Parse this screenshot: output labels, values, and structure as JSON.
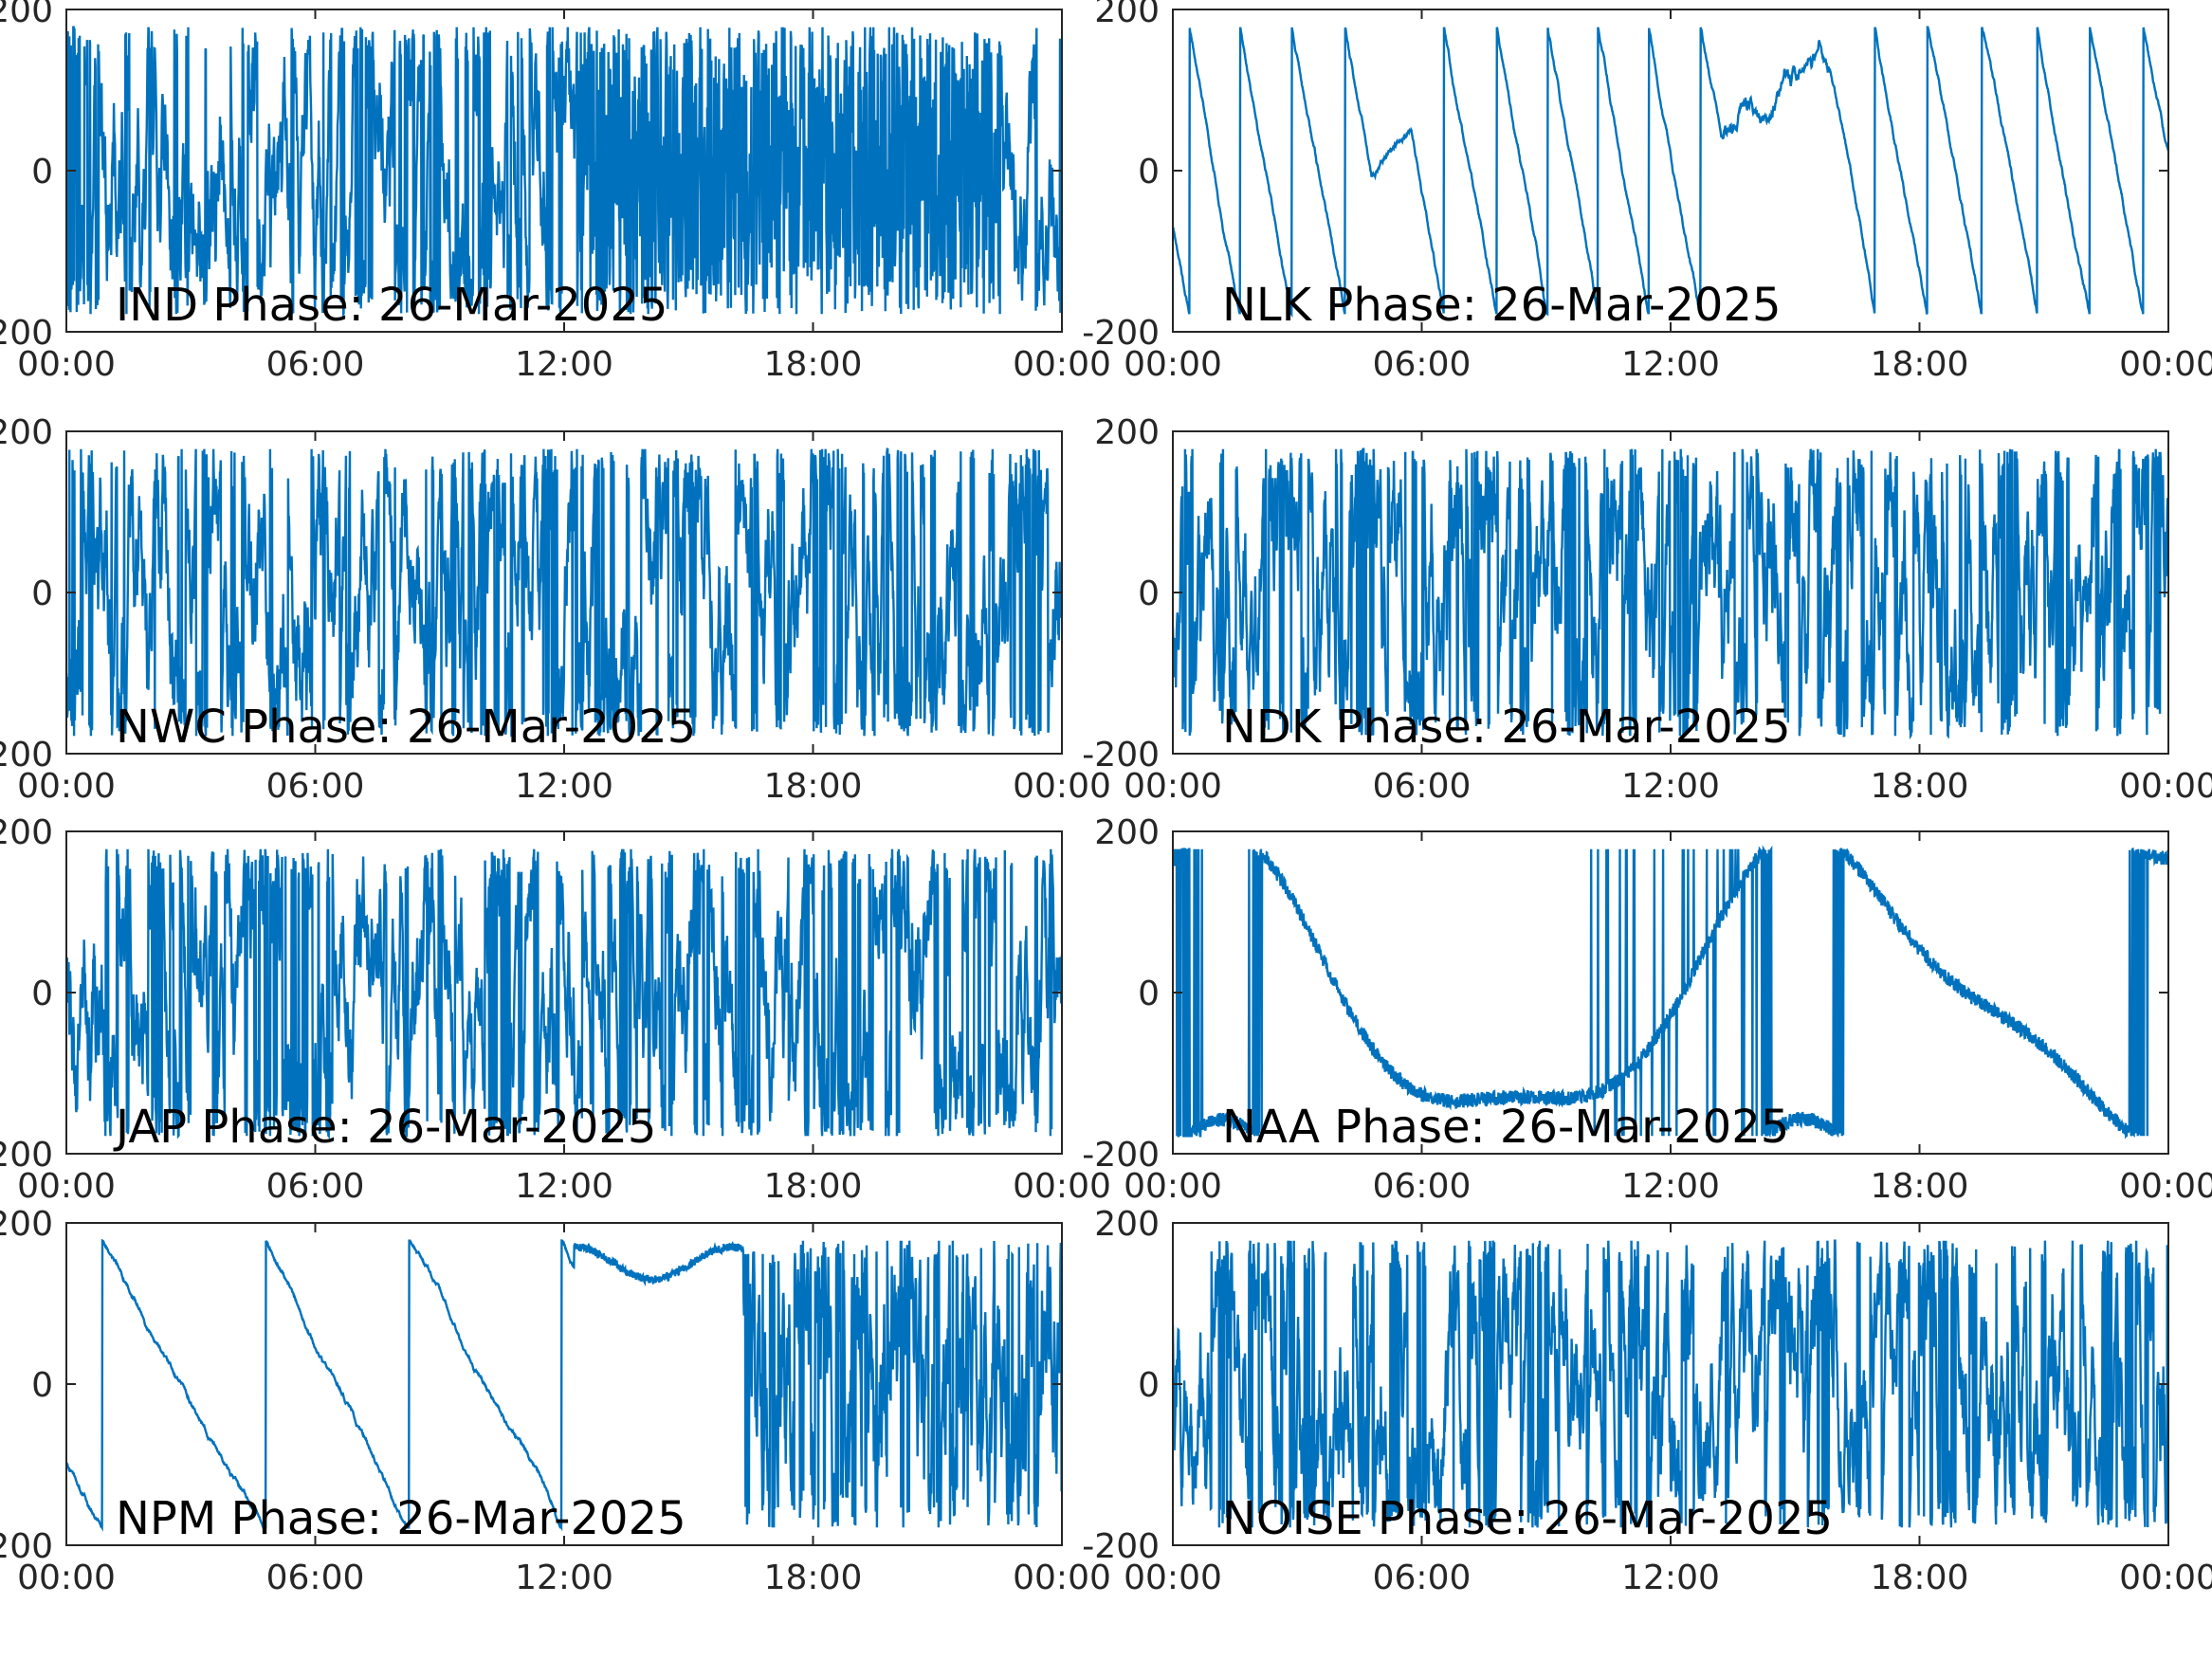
{
  "chart_data": [
    {
      "type": "line",
      "label": "IND Phase: 26-Mar-2025",
      "xlim": [
        "00:00",
        "00:00"
      ],
      "xticks": [
        "00:00",
        "06:00",
        "12:00",
        "18:00",
        "00:00"
      ],
      "ylim": [
        -200,
        200
      ],
      "yticks": [
        "200",
        "0",
        "-200"
      ],
      "pattern": "wrapped-noise",
      "dense_window": [
        "12:20",
        "22:30"
      ],
      "grid": false,
      "color": "#0072bd"
    },
    {
      "type": "line",
      "label": "NLK Phase: 26-Mar-2025",
      "xlim": [
        "00:00",
        "00:00"
      ],
      "xticks": [
        "00:00",
        "06:00",
        "12:00",
        "18:00",
        "00:00"
      ],
      "ylim": [
        -200,
        200
      ],
      "yticks": [
        "200",
        "0",
        "-200"
      ],
      "pattern": "wrapped-ramp",
      "grid": false,
      "color": "#0072bd"
    },
    {
      "type": "line",
      "label": "NWC Phase: 26-Mar-2025",
      "xlim": [
        "00:00",
        "00:00"
      ],
      "xticks": [
        "00:00",
        "06:00",
        "12:00",
        "18:00",
        "00:00"
      ],
      "ylim": [
        -200,
        200
      ],
      "yticks": [
        "200",
        "0",
        "-200"
      ],
      "pattern": "wrapped-noise",
      "grid": false,
      "color": "#0072bd"
    },
    {
      "type": "line",
      "label": "NDK Phase: 26-Mar-2025",
      "xlim": [
        "00:00",
        "00:00"
      ],
      "xticks": [
        "00:00",
        "06:00",
        "12:00",
        "18:00",
        "00:00"
      ],
      "ylim": [
        -200,
        200
      ],
      "yticks": [
        "200",
        "0",
        "-200"
      ],
      "pattern": "wrapped-noise",
      "grid": false,
      "color": "#0072bd"
    },
    {
      "type": "line",
      "label": "JAP Phase: 26-Mar-2025",
      "xlim": [
        "00:00",
        "00:00"
      ],
      "xticks": [
        "00:00",
        "06:00",
        "12:00",
        "18:00",
        "00:00"
      ],
      "ylim": [
        -200,
        200
      ],
      "yticks": [
        "200",
        "0",
        "-200"
      ],
      "pattern": "wrapped-noise",
      "grid": false,
      "color": "#0072bd"
    },
    {
      "type": "line",
      "label": "NAA Phase: 26-Mar-2025",
      "xlim": [
        "00:00",
        "00:00"
      ],
      "xticks": [
        "00:00",
        "06:00",
        "12:00",
        "18:00",
        "00:00"
      ],
      "ylim": [
        -200,
        200
      ],
      "yticks": [
        "200",
        "0",
        "-200"
      ],
      "pattern": "drifting-trend",
      "grid": false,
      "color": "#0072bd"
    },
    {
      "type": "line",
      "label": "NPM Phase: 26-Mar-2025",
      "xlim": [
        "00:00",
        "00:00"
      ],
      "xticks": [
        "00:00",
        "06:00",
        "12:00",
        "18:00",
        "00:00"
      ],
      "ylim": [
        -200,
        200
      ],
      "yticks": [
        "200",
        "0",
        "-200"
      ],
      "pattern": "ramp-then-noise",
      "grid": false,
      "color": "#0072bd"
    },
    {
      "type": "line",
      "label": "NOISE Phase: 26-Mar-2025",
      "xlim": [
        "00:00",
        "00:00"
      ],
      "xticks": [
        "00:00",
        "06:00",
        "12:00",
        "18:00",
        "00:00"
      ],
      "ylim": [
        -200,
        200
      ],
      "yticks": [
        "200",
        "0",
        "-200"
      ],
      "pattern": "wrapped-noise",
      "grid": false,
      "color": "#0072bd"
    }
  ]
}
